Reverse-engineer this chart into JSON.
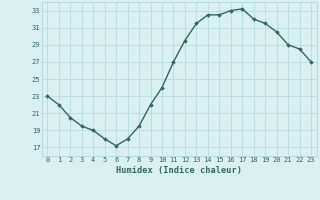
{
  "x": [
    0,
    1,
    2,
    3,
    4,
    5,
    6,
    7,
    8,
    9,
    10,
    11,
    12,
    13,
    14,
    15,
    16,
    17,
    18,
    19,
    20,
    21,
    22,
    23
  ],
  "y": [
    23,
    22,
    20.5,
    19.5,
    19,
    18,
    17.2,
    18,
    19.5,
    22,
    24,
    27,
    29.5,
    31.5,
    32.5,
    32.5,
    33,
    33.2,
    32,
    31.5,
    30.5,
    29,
    28.5,
    27
  ],
  "line_color": "#2d6b5e",
  "marker": "D",
  "marker_size": 1.8,
  "bg_color": "#d9f0f0",
  "grid_color": "#b0d8d8",
  "tick_color": "#2d6b5e",
  "label_color": "#2d6b5e",
  "xlabel": "Humidex (Indice chaleur)",
  "ylim": [
    16,
    34
  ],
  "yticks": [
    17,
    19,
    21,
    23,
    25,
    27,
    29,
    31,
    33
  ],
  "xticks": [
    0,
    1,
    2,
    3,
    4,
    5,
    6,
    7,
    8,
    9,
    10,
    11,
    12,
    13,
    14,
    15,
    16,
    17,
    18,
    19,
    20,
    21,
    22,
    23
  ],
  "linewidth": 1.0,
  "tick_fontsize": 5.0,
  "xlabel_fontsize": 6.2
}
